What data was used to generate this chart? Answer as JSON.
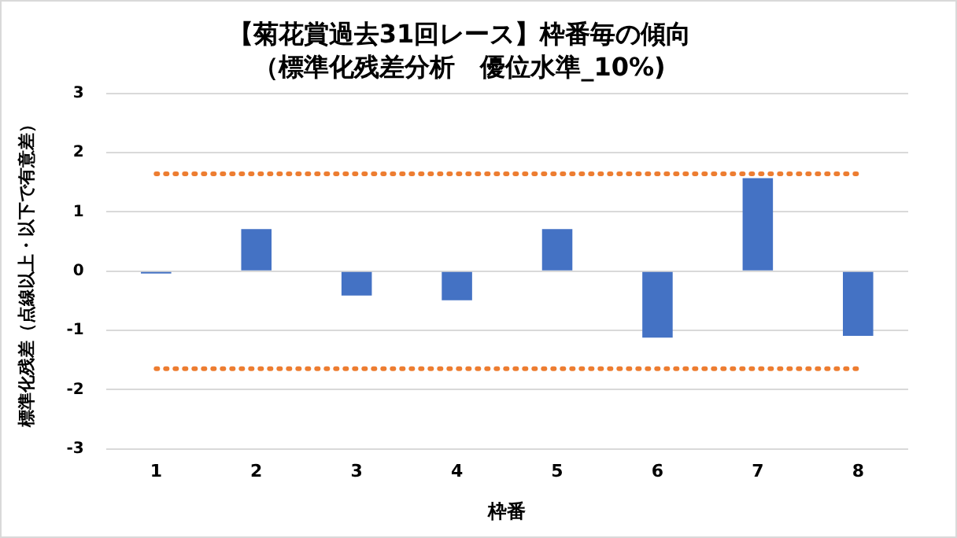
{
  "chart_data": {
    "type": "bar",
    "title": "【菊花賞過去31回レース】枠番毎の傾向",
    "subtitle": "（標準化残差分析　優位水準_10%)",
    "xlabel": "枠番",
    "ylabel": "標準化残差（点線以上・以下で有意差）",
    "categories": [
      "1",
      "2",
      "3",
      "4",
      "5",
      "6",
      "7",
      "8"
    ],
    "values": [
      -0.04,
      0.71,
      -0.41,
      -0.49,
      0.71,
      -1.12,
      1.57,
      -1.09
    ],
    "color": "#4472c4",
    "ylim": [
      -3,
      3
    ],
    "yticks": [
      -3,
      -2,
      -1,
      0,
      1,
      2,
      3
    ],
    "grid": "y",
    "legend": false,
    "ref_lines": [
      {
        "axis": "y",
        "value": 1.645,
        "color": "#ed7d31",
        "line_style": "dotted"
      },
      {
        "axis": "y",
        "value": -1.645,
        "color": "#ed7d31",
        "line_style": "dotted"
      }
    ]
  }
}
